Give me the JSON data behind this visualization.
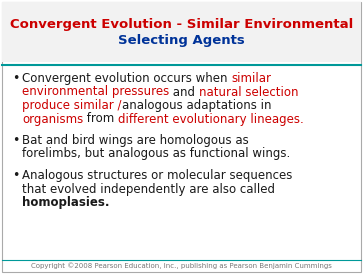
{
  "title_line1": "Convergent Evolution - Similar Environmental",
  "title_line2": "Selecting Agents",
  "title_color": "#cc0000",
  "title_color2": "#003399",
  "teal_line_color": "#009999",
  "background_color": "#ffffff",
  "border_color": "#aaaaaa",
  "red_color": "#cc0000",
  "black_color": "#1a1a1a",
  "copyright_text": "Copyright ©2008 Pearson Education, Inc., publishing as Pearson Benjamin Cummings",
  "font_size_title": 9.5,
  "font_size_body": 8.5,
  "font_size_copyright": 5.0,
  "font_family": "DejaVu Sans"
}
